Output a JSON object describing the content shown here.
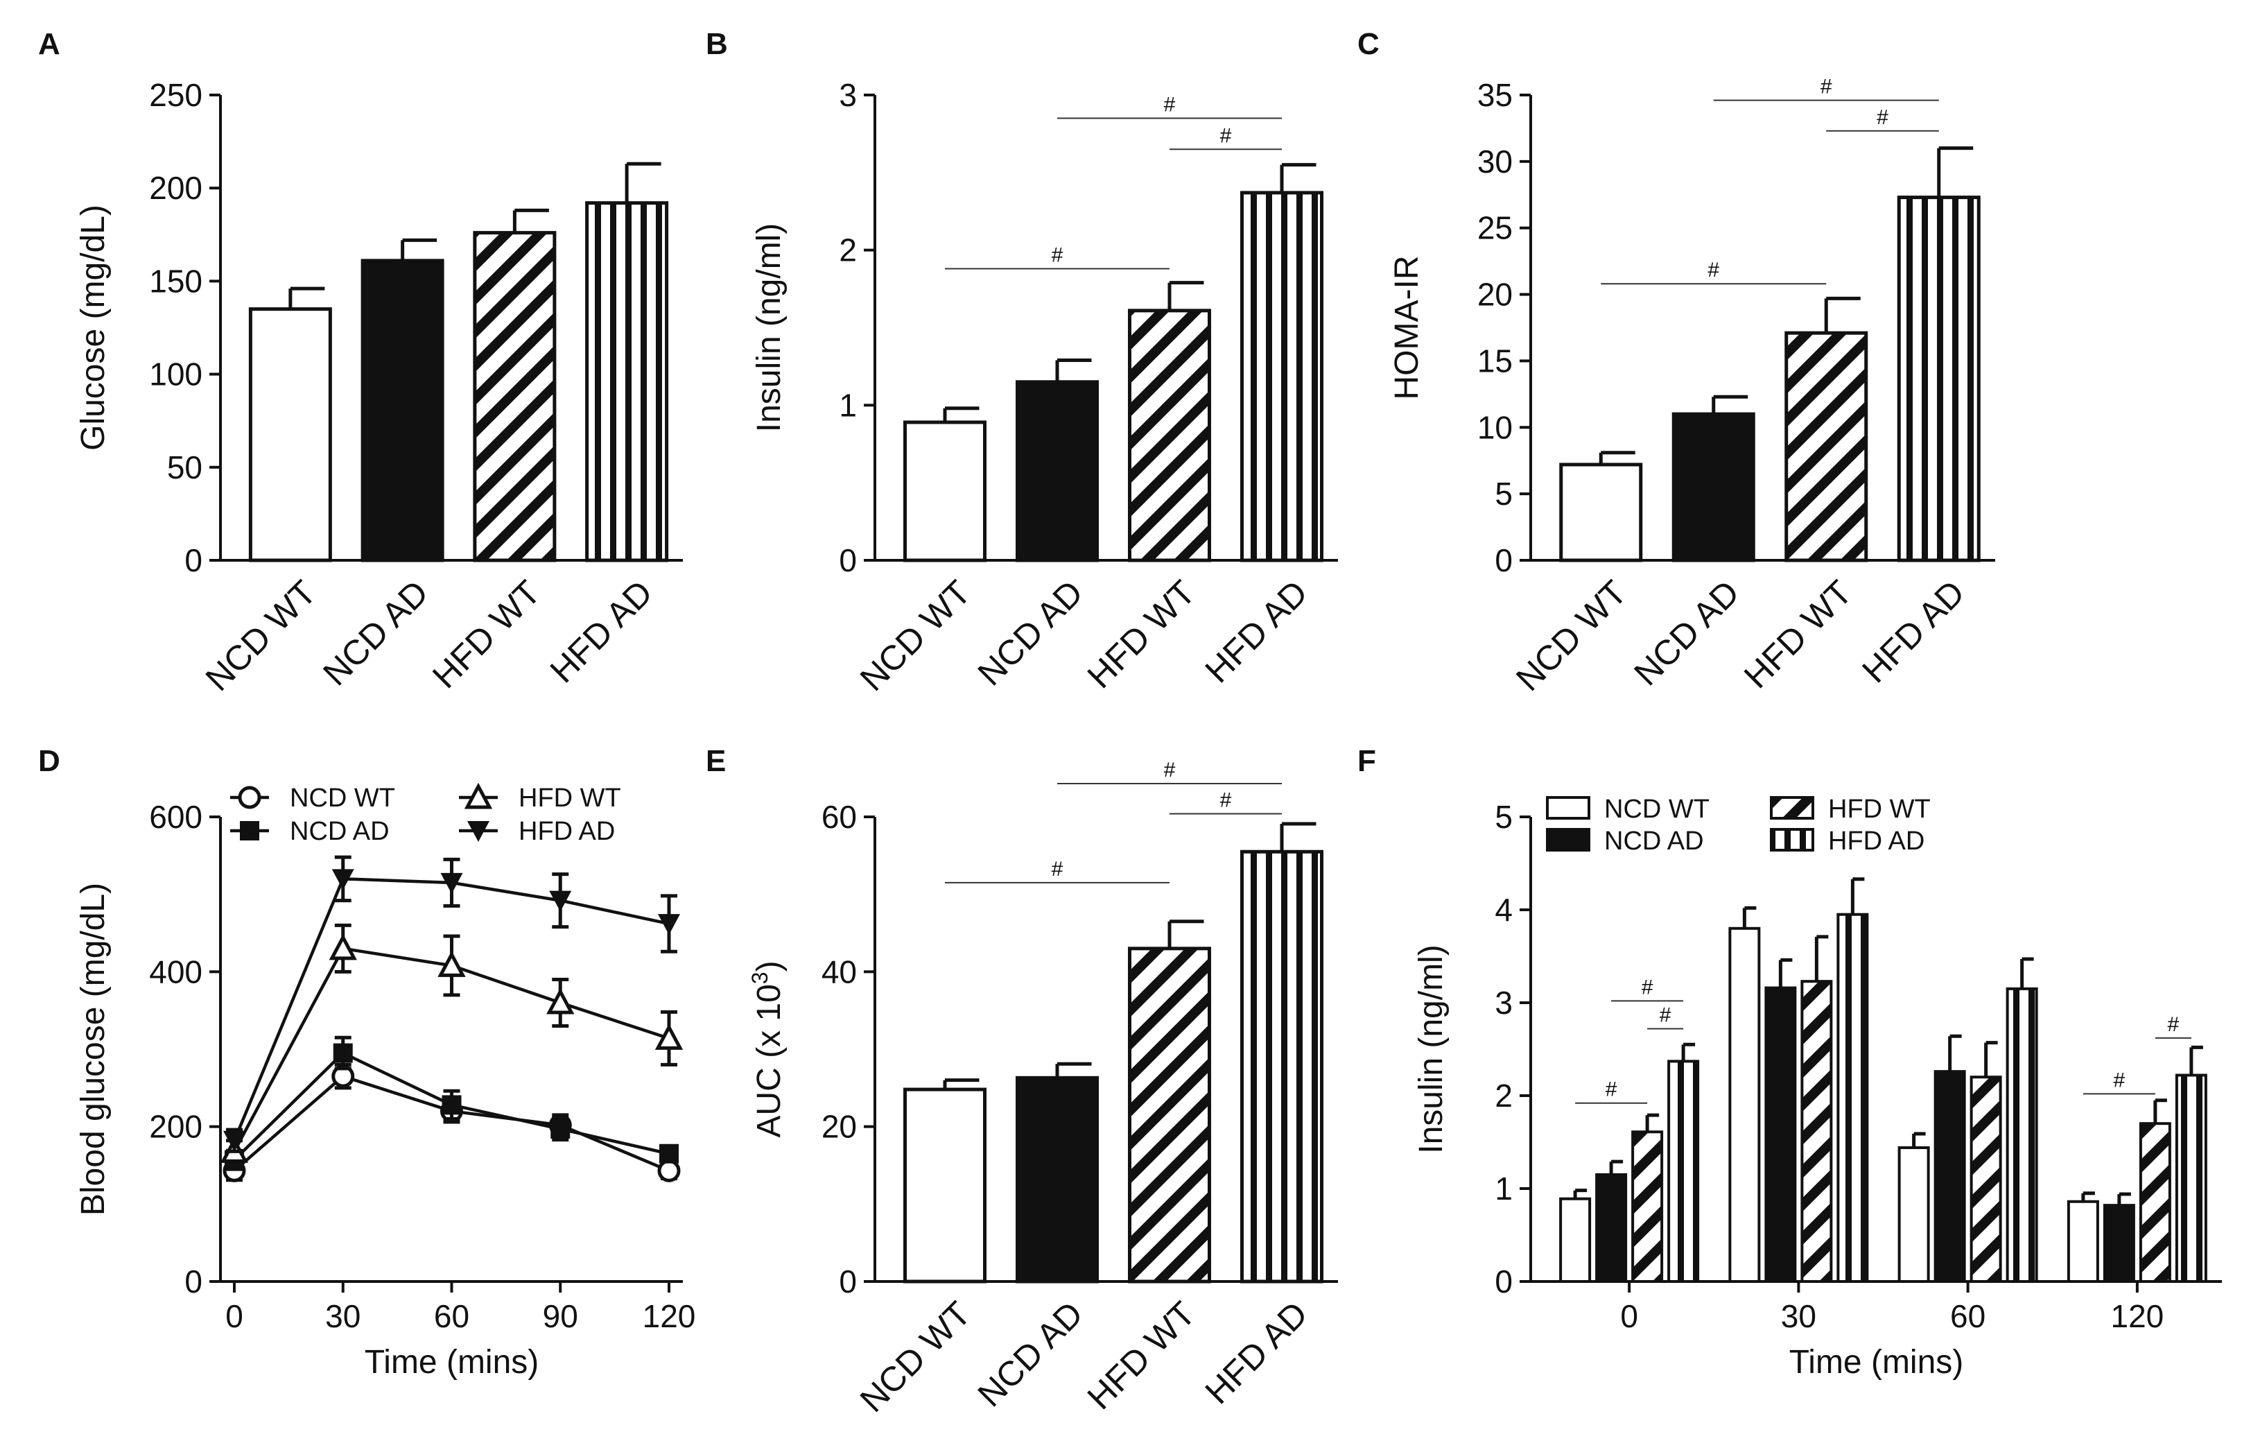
{
  "chart_data": [
    {
      "panel": "A",
      "type": "bar",
      "categories": [
        "NCD WT",
        "NCD AD",
        "HFD WT",
        "HFD AD"
      ],
      "values": [
        135,
        161,
        176,
        192
      ],
      "errors": [
        11,
        11,
        12,
        21
      ],
      "patterns": [
        "white",
        "black",
        "diag",
        "vert"
      ],
      "ylabel": "Glucose (mg/dL)",
      "ylim": [
        0,
        250
      ],
      "yticks": [
        "0",
        "50",
        "100",
        "150",
        "200",
        "250"
      ],
      "significance": []
    },
    {
      "panel": "B",
      "type": "bar",
      "categories": [
        "NCD WT",
        "NCD AD",
        "HFD WT",
        "HFD AD"
      ],
      "values": [
        0.89,
        1.15,
        1.61,
        2.37
      ],
      "errors": [
        0.09,
        0.14,
        0.18,
        0.18
      ],
      "patterns": [
        "white",
        "black",
        "diag",
        "vert"
      ],
      "ylabel": "Insulin (ng/ml)",
      "ylim": [
        0,
        3
      ],
      "yticks": [
        "0",
        "1",
        "2",
        "3"
      ],
      "significance": [
        {
          "from": 0,
          "to": 2,
          "level": 1.88,
          "label": "#"
        },
        {
          "from": 1,
          "to": 3,
          "level": 2.85,
          "label": "#"
        },
        {
          "from": 2,
          "to": 3,
          "level": 2.65,
          "label": "#"
        }
      ]
    },
    {
      "panel": "C",
      "type": "bar",
      "categories": [
        "NCD WT",
        "NCD AD",
        "HFD WT",
        "HFD AD"
      ],
      "values": [
        7.2,
        11.0,
        17.1,
        27.3
      ],
      "errors": [
        0.9,
        1.3,
        2.6,
        3.7
      ],
      "patterns": [
        "white",
        "black",
        "diag",
        "vert"
      ],
      "ylabel": "HOMA-IR",
      "ylim": [
        0,
        35
      ],
      "yticks": [
        "0",
        "5",
        "10",
        "15",
        "20",
        "25",
        "30",
        "35"
      ],
      "significance": [
        {
          "from": 0,
          "to": 2,
          "level": 20.8,
          "label": "#"
        },
        {
          "from": 1,
          "to": 3,
          "level": 34.6,
          "label": "#"
        },
        {
          "from": 2,
          "to": 3,
          "level": 32.3,
          "label": "#"
        }
      ]
    },
    {
      "panel": "D",
      "type": "line",
      "x": [
        0,
        30,
        60,
        90,
        120
      ],
      "xticks": [
        "0",
        "30",
        "60",
        "90",
        "120"
      ],
      "xlim": [
        0,
        120
      ],
      "ylim": [
        0,
        600
      ],
      "yticks": [
        "0",
        "200",
        "400",
        "600"
      ],
      "xlabel": "Time (mins)",
      "ylabel": "Blood glucose (mg/dL)",
      "series": [
        {
          "name": "NCD WT",
          "marker": "circle-open",
          "values": [
            143,
            265,
            220,
            202,
            143
          ],
          "errors": [
            12,
            15,
            14,
            13,
            10
          ]
        },
        {
          "name": "NCD AD",
          "marker": "square-filled",
          "values": [
            157,
            295,
            228,
            197,
            165
          ],
          "errors": [
            12,
            20,
            18,
            14,
            10
          ]
        },
        {
          "name": "HFD WT",
          "marker": "triangle-open",
          "values": [
            168,
            430,
            408,
            360,
            314
          ],
          "errors": [
            14,
            30,
            38,
            30,
            34
          ]
        },
        {
          "name": "HFD AD",
          "marker": "triangle-down-filled",
          "values": [
            182,
            520,
            515,
            492,
            462
          ],
          "errors": [
            14,
            28,
            30,
            34,
            36
          ]
        }
      ]
    },
    {
      "panel": "E",
      "type": "bar",
      "categories": [
        "NCD WT",
        "NCD AD",
        "HFD WT",
        "HFD AD"
      ],
      "values": [
        24.8,
        26.3,
        43.0,
        55.5
      ],
      "errors": [
        1.2,
        1.8,
        3.5,
        3.6
      ],
      "patterns": [
        "white",
        "black",
        "diag",
        "vert"
      ],
      "ylabel": "AUC (x 10",
      "ylabel_sup": "3",
      "ylabel_end": ")",
      "ylim": [
        0,
        60
      ],
      "yticks": [
        "0",
        "20",
        "40",
        "60"
      ],
      "significance": [
        {
          "from": 0,
          "to": 2,
          "level": 51.5,
          "label": "#"
        },
        {
          "from": 1,
          "to": 3,
          "level": 64.3,
          "label": "#"
        },
        {
          "from": 2,
          "to": 3,
          "level": 60.4,
          "label": "#"
        }
      ]
    },
    {
      "panel": "F",
      "type": "bar",
      "categories": [
        "0",
        "30",
        "60",
        "120"
      ],
      "xlabel": "Time (mins)",
      "ylabel": "Insulin (ng/ml)",
      "ylim": [
        0,
        5
      ],
      "yticks": [
        "0",
        "1",
        "2",
        "3",
        "4",
        "5"
      ],
      "series": [
        {
          "name": "NCD WT",
          "pattern": "white",
          "values": [
            0.89,
            3.8,
            1.44,
            0.86
          ],
          "errors": [
            0.09,
            0.22,
            0.15,
            0.09
          ]
        },
        {
          "name": "NCD AD",
          "pattern": "black",
          "values": [
            1.15,
            3.16,
            2.26,
            0.82
          ],
          "errors": [
            0.14,
            0.3,
            0.38,
            0.12
          ]
        },
        {
          "name": "HFD WT",
          "pattern": "diag",
          "values": [
            1.61,
            3.23,
            2.2,
            1.7
          ],
          "errors": [
            0.18,
            0.48,
            0.37,
            0.25
          ]
        },
        {
          "name": "HFD AD",
          "pattern": "vert",
          "values": [
            2.37,
            3.95,
            3.15,
            2.22
          ],
          "errors": [
            0.18,
            0.38,
            0.32,
            0.3
          ]
        }
      ],
      "significance": [
        {
          "group": 0,
          "from": 0,
          "to": 2,
          "level": 1.92,
          "label": "#"
        },
        {
          "group": 0,
          "from": 1,
          "to": 3,
          "level": 3.02,
          "label": "#"
        },
        {
          "group": 0,
          "from": 2,
          "to": 3,
          "level": 2.72,
          "label": "#"
        },
        {
          "group": 3,
          "from": 0,
          "to": 2,
          "level": 2.02,
          "label": "#"
        },
        {
          "group": 3,
          "from": 2,
          "to": 3,
          "level": 2.62,
          "label": "#"
        }
      ]
    }
  ]
}
